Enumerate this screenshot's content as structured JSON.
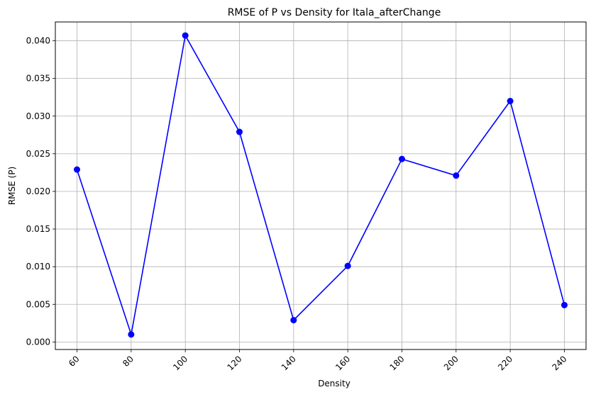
{
  "chart_data": {
    "type": "line",
    "title": "RMSE of P vs Density for Itala_afterChange",
    "xlabel": "Density",
    "ylabel": "RMSE (P)",
    "x": [
      60,
      80,
      100,
      120,
      140,
      160,
      180,
      200,
      220,
      240
    ],
    "x_tick_labels": [
      "60",
      "80",
      "100",
      "120",
      "140",
      "160",
      "180",
      "200",
      "220",
      "240"
    ],
    "xlim": [
      52,
      248
    ],
    "ylim": [
      -0.001,
      0.0425
    ],
    "y_ticks": [
      0.0,
      0.005,
      0.01,
      0.015,
      0.02,
      0.025,
      0.03,
      0.035,
      0.04
    ],
    "y_tick_labels": [
      "0.000",
      "0.005",
      "0.010",
      "0.015",
      "0.020",
      "0.025",
      "0.030",
      "0.035",
      "0.040"
    ],
    "x_tick_rotation_deg": 45,
    "grid": true,
    "series": [
      {
        "values": [
          0.0229,
          0.001,
          0.0407,
          0.0279,
          0.0029,
          0.0101,
          0.0243,
          0.0221,
          0.032,
          0.0049
        ],
        "color": "#0000ff",
        "marker": "circle"
      }
    ]
  }
}
